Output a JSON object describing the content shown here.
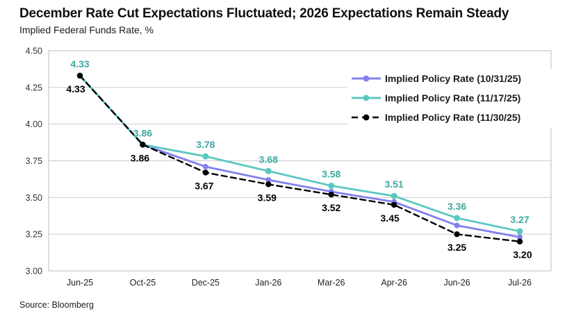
{
  "header": {
    "title": "December Rate Cut Expectations Fluctuated; 2026 Expectations Remain Steady",
    "subtitle": "Implied Federal Funds Rate, %"
  },
  "footer": {
    "source": "Source: Bloomberg"
  },
  "colors": {
    "purple": "#8280EE",
    "teal": "#5BC8C0",
    "teal_label": "#3FA7A1",
    "black": "#000000",
    "grid": "#CCCCCC",
    "border": "#BDBDBD",
    "tick_text": "#333333",
    "x_tick_text": "#222222",
    "legend_text": "#1a1a1a"
  },
  "chart_data": {
    "type": "line",
    "title": "December Rate Cut Expectations Fluctuated; 2026 Expectations Remain Steady",
    "ylabel": "Implied Federal Funds Rate, %",
    "source": "Source: Bloomberg",
    "categories": [
      "Jun-25",
      "Oct-25",
      "Dec-25",
      "Jan-26",
      "Mar-26",
      "Apr-26",
      "Jun-26",
      "Jul-26"
    ],
    "ylim": [
      3.0,
      4.5
    ],
    "y_ticks": [
      "4.50",
      "4.25",
      "4.00",
      "3.75",
      "3.50",
      "3.25",
      "3.00"
    ],
    "grid": "horizontal",
    "legend_position": "top-right",
    "series": [
      {
        "name": "Implied Policy Rate (10/31/25)",
        "color_key": "purple",
        "line_style": "solid",
        "values": [
          4.33,
          3.86,
          3.71,
          3.62,
          3.54,
          3.47,
          3.31,
          3.23
        ],
        "point_labels": false
      },
      {
        "name": "Implied Policy Rate (11/17/25)",
        "color_key": "teal",
        "line_style": "solid",
        "values": [
          4.33,
          3.86,
          3.78,
          3.68,
          3.58,
          3.51,
          3.36,
          3.27
        ],
        "point_labels": true,
        "label_position": "above"
      },
      {
        "name": "Implied Policy Rate (11/30/25)",
        "color_key": "black",
        "line_style": "dashed",
        "values": [
          4.33,
          3.86,
          3.67,
          3.59,
          3.52,
          3.45,
          3.25,
          3.2
        ],
        "point_labels": true,
        "label_position": "below"
      }
    ]
  }
}
